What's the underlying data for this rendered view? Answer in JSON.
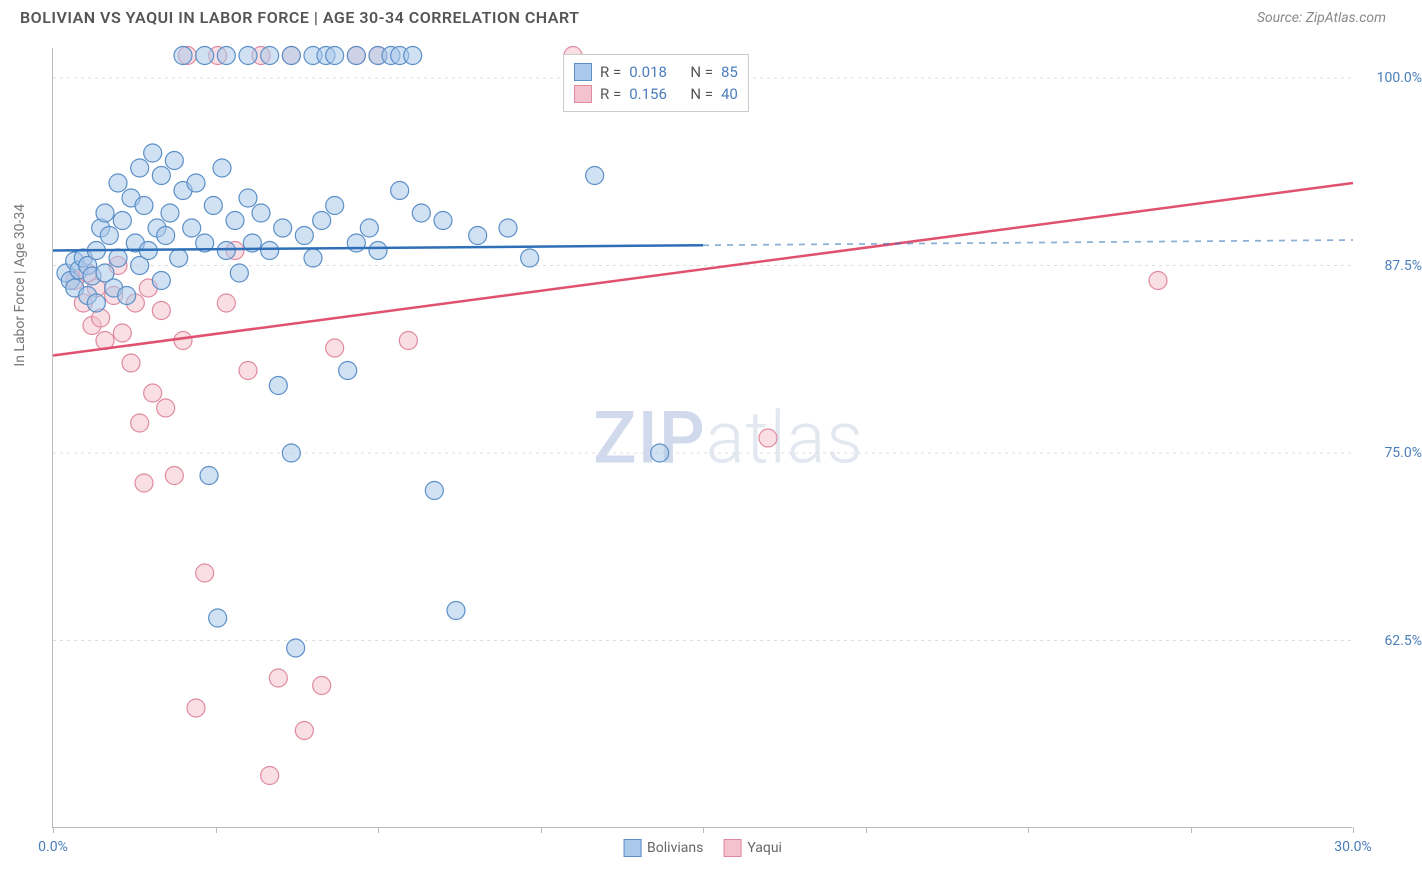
{
  "title": "BOLIVIAN VS YAQUI IN LABOR FORCE | AGE 30-34 CORRELATION CHART",
  "source": "Source: ZipAtlas.com",
  "y_axis_label": "In Labor Force | Age 30-34",
  "watermark_zip": "ZIP",
  "watermark_atlas": "atlas",
  "chart": {
    "type": "scatter",
    "xlim": [
      0,
      30
    ],
    "ylim": [
      50,
      102
    ],
    "y_ticks": [
      {
        "v": 62.5,
        "label": "62.5%"
      },
      {
        "v": 75.0,
        "label": "75.0%"
      },
      {
        "v": 87.5,
        "label": "87.5%"
      },
      {
        "v": 100.0,
        "label": "100.0%"
      }
    ],
    "x_ticks": [
      0,
      3.75,
      7.5,
      11.25,
      15,
      18.75,
      22.5,
      26.25,
      30
    ],
    "x_tick_labels": {
      "0": "0.0%",
      "30": "30.0%"
    },
    "background_color": "#ffffff",
    "grid_color": "#dddddd",
    "axis_color": "#bbbbbb",
    "marker_radius": 9,
    "marker_stroke_width": 1.2,
    "line_width": 2.5,
    "series": {
      "bolivians": {
        "label": "Bolivians",
        "fill": "#a9c8ea",
        "stroke": "#5b8fc7",
        "line_color": "#2f6fb8",
        "fill_opacity": 0.55,
        "R": "0.018",
        "N": "85",
        "trend": {
          "x1": 0,
          "y1": 88.5,
          "x2": 30,
          "y2": 89.2,
          "solid_until_x": 15
        },
        "points": [
          [
            0.3,
            87.0
          ],
          [
            0.4,
            86.5
          ],
          [
            0.5,
            87.8
          ],
          [
            0.5,
            86.0
          ],
          [
            0.6,
            87.2
          ],
          [
            0.7,
            88.0
          ],
          [
            0.8,
            85.5
          ],
          [
            0.8,
            87.5
          ],
          [
            0.9,
            86.8
          ],
          [
            1.0,
            88.5
          ],
          [
            1.0,
            85.0
          ],
          [
            1.1,
            90.0
          ],
          [
            1.2,
            87.0
          ],
          [
            1.2,
            91.0
          ],
          [
            1.3,
            89.5
          ],
          [
            1.4,
            86.0
          ],
          [
            1.5,
            93.0
          ],
          [
            1.5,
            88.0
          ],
          [
            1.6,
            90.5
          ],
          [
            1.7,
            85.5
          ],
          [
            1.8,
            92.0
          ],
          [
            1.9,
            89.0
          ],
          [
            2.0,
            94.0
          ],
          [
            2.0,
            87.5
          ],
          [
            2.1,
            91.5
          ],
          [
            2.2,
            88.5
          ],
          [
            2.3,
            95.0
          ],
          [
            2.4,
            90.0
          ],
          [
            2.5,
            93.5
          ],
          [
            2.5,
            86.5
          ],
          [
            2.6,
            89.5
          ],
          [
            2.7,
            91.0
          ],
          [
            2.8,
            94.5
          ],
          [
            2.9,
            88.0
          ],
          [
            3.0,
            92.5
          ],
          [
            3.0,
            101.5
          ],
          [
            3.2,
            90.0
          ],
          [
            3.3,
            93.0
          ],
          [
            3.5,
            89.0
          ],
          [
            3.5,
            101.5
          ],
          [
            3.6,
            73.5
          ],
          [
            3.7,
            91.5
          ],
          [
            3.8,
            64.0
          ],
          [
            3.9,
            94.0
          ],
          [
            4.0,
            88.5
          ],
          [
            4.0,
            101.5
          ],
          [
            4.2,
            90.5
          ],
          [
            4.3,
            87.0
          ],
          [
            4.5,
            92.0
          ],
          [
            4.5,
            101.5
          ],
          [
            4.6,
            89.0
          ],
          [
            4.8,
            91.0
          ],
          [
            5.0,
            88.5
          ],
          [
            5.0,
            101.5
          ],
          [
            5.2,
            79.5
          ],
          [
            5.3,
            90.0
          ],
          [
            5.5,
            75.0
          ],
          [
            5.5,
            101.5
          ],
          [
            5.6,
            62.0
          ],
          [
            5.8,
            89.5
          ],
          [
            6.0,
            88.0
          ],
          [
            6.0,
            101.5
          ],
          [
            6.2,
            90.5
          ],
          [
            6.3,
            101.5
          ],
          [
            6.5,
            91.5
          ],
          [
            6.5,
            101.5
          ],
          [
            6.8,
            80.5
          ],
          [
            7.0,
            89.0
          ],
          [
            7.0,
            101.5
          ],
          [
            7.3,
            90.0
          ],
          [
            7.5,
            88.5
          ],
          [
            7.5,
            101.5
          ],
          [
            7.8,
            101.5
          ],
          [
            8.0,
            92.5
          ],
          [
            8.0,
            101.5
          ],
          [
            8.3,
            101.5
          ],
          [
            8.5,
            91.0
          ],
          [
            8.8,
            72.5
          ],
          [
            9.0,
            90.5
          ],
          [
            9.3,
            64.5
          ],
          [
            9.8,
            89.5
          ],
          [
            10.5,
            90.0
          ],
          [
            11.0,
            88.0
          ],
          [
            12.5,
            93.5
          ],
          [
            14.0,
            75.0
          ]
        ]
      },
      "yaqui": {
        "label": "Yaqui",
        "fill": "#f4c2ce",
        "stroke": "#e08aa0",
        "line_color": "#e0506f",
        "fill_opacity": 0.55,
        "R": "0.156",
        "N": "40",
        "trend": {
          "x1": 0,
          "y1": 81.5,
          "x2": 30,
          "y2": 93.0,
          "solid_until_x": 30
        },
        "points": [
          [
            0.5,
            86.5
          ],
          [
            0.7,
            85.0
          ],
          [
            0.8,
            87.0
          ],
          [
            0.9,
            83.5
          ],
          [
            1.0,
            86.0
          ],
          [
            1.1,
            84.0
          ],
          [
            1.2,
            82.5
          ],
          [
            1.4,
            85.5
          ],
          [
            1.5,
            87.5
          ],
          [
            1.6,
            83.0
          ],
          [
            1.8,
            81.0
          ],
          [
            1.9,
            85.0
          ],
          [
            2.0,
            77.0
          ],
          [
            2.1,
            73.0
          ],
          [
            2.2,
            86.0
          ],
          [
            2.3,
            79.0
          ],
          [
            2.5,
            84.5
          ],
          [
            2.6,
            78.0
          ],
          [
            2.8,
            73.5
          ],
          [
            3.0,
            82.5
          ],
          [
            3.1,
            101.5
          ],
          [
            3.3,
            58.0
          ],
          [
            3.5,
            67.0
          ],
          [
            3.8,
            101.5
          ],
          [
            4.0,
            85.0
          ],
          [
            4.2,
            88.5
          ],
          [
            4.5,
            80.5
          ],
          [
            4.8,
            101.5
          ],
          [
            5.0,
            53.5
          ],
          [
            5.2,
            60.0
          ],
          [
            5.5,
            101.5
          ],
          [
            5.8,
            56.5
          ],
          [
            6.2,
            59.5
          ],
          [
            6.5,
            82.0
          ],
          [
            7.0,
            101.5
          ],
          [
            7.5,
            101.5
          ],
          [
            8.2,
            82.5
          ],
          [
            12.0,
            101.5
          ],
          [
            16.5,
            76.0
          ],
          [
            25.5,
            86.5
          ]
        ]
      }
    }
  },
  "legend_top": {
    "r_label": "R =",
    "n_label": "N ="
  }
}
